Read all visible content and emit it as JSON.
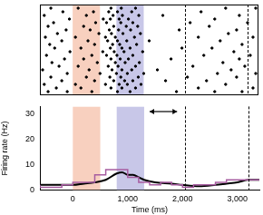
{
  "chart_data": [
    {
      "type": "scatter",
      "xlim": [
        -600,
        3400
      ],
      "ylim": [
        0,
        25
      ],
      "tick_labels": false,
      "grid": false,
      "color": "#000000",
      "marker": "dot",
      "trials": [
        [
          -450,
          -100,
          350,
          820,
          1050,
          1900,
          2600,
          3100
        ],
        [
          -300,
          150,
          700,
          900,
          1150,
          2300,
          3300
        ],
        [
          -520,
          50,
          600,
          850,
          1000,
          1250,
          2800
        ],
        [
          -200,
          400,
          750,
          950,
          1100,
          1700,
          2450
        ],
        [
          -400,
          250,
          680,
          880,
          1200,
          2100,
          3000
        ],
        [
          -100,
          500,
          800,
          1000,
          1300,
          2650,
          3350
        ],
        [
          -550,
          300,
          720,
          900,
          1080,
          1550,
          2900
        ],
        [
          -250,
          100,
          650,
          830,
          1150,
          2200,
          3150
        ],
        [
          -380,
          450,
          780,
          960,
          1220,
          2750
        ],
        [
          -150,
          200,
          700,
          870,
          1020,
          1800,
          3050
        ],
        [
          -480,
          350,
          620,
          810,
          1100,
          2400,
          3250
        ],
        [
          -50,
          550,
          760,
          940,
          1280,
          2950
        ],
        [
          -330,
          150,
          690,
          900,
          1050,
          2000,
          2550
        ],
        [
          -420,
          400,
          730,
          860,
          1170,
          3100
        ],
        [
          -200,
          280,
          640,
          820,
          990,
          1400,
          2700
        ],
        [
          -500,
          50,
          600,
          780,
          1130,
          2300,
          3300
        ],
        [
          -280,
          480,
          710,
          920,
          1240,
          2850
        ],
        [
          -120,
          320,
          670,
          840,
          1060,
          1950,
          3000
        ],
        [
          -450,
          200,
          750,
          980,
          1190,
          2500
        ],
        [
          -350,
          420,
          620,
          880,
          1100,
          2150,
          3200
        ],
        [
          -60,
          560,
          690,
          850,
          1020,
          2600
        ],
        [
          -520,
          250,
          740,
          910,
          1210,
          1650,
          3050
        ],
        [
          -180,
          380,
          660,
          820,
          1080,
          2350
        ],
        [
          -400,
          100,
          700,
          890,
          1150,
          2800,
          3350
        ]
      ],
      "shaded_regions": [
        {
          "start": 0,
          "end": 500,
          "color": "#f8d0bf"
        },
        {
          "start": 800,
          "end": 1300,
          "color": "#c8c7e8"
        }
      ],
      "vlines": [
        2050,
        3200
      ]
    },
    {
      "type": "line",
      "x_label": "Time (ms)",
      "y_label": "Firing rate (Hz)",
      "xlim": [
        -600,
        3400
      ],
      "ylim": [
        0,
        33
      ],
      "xticks": [
        0,
        {
          "value": 1000,
          "label": "1,000"
        },
        {
          "value": 2000,
          "label": "2,000"
        },
        {
          "value": 3000,
          "label": "3,000"
        }
      ],
      "yticks": [
        0,
        10,
        20,
        30
      ],
      "grid": false,
      "series": [
        {
          "type": "histogram",
          "color": "#a65ca0",
          "bins": [
            -600,
            -400,
            -200,
            0,
            200,
            400,
            600,
            800,
            1000,
            1200,
            1400,
            1600,
            1800,
            2000,
            2200,
            2400,
            2600,
            2800,
            3000,
            3200,
            3400
          ],
          "values": [
            2,
            1,
            1,
            2,
            3,
            3,
            6,
            8,
            8,
            5,
            3,
            2,
            3,
            2,
            1,
            2,
            2,
            3,
            4,
            4
          ]
        },
        {
          "type": "line",
          "color": "#000000",
          "x": [
            -600,
            -400,
            -200,
            0,
            200,
            400,
            600,
            800,
            900,
            1000,
            1100,
            1200,
            1300,
            1500,
            1800,
            2000,
            2300,
            2600,
            2800,
            3000,
            3200,
            3400
          ],
          "values": [
            2,
            2,
            2,
            2,
            2.5,
            3,
            4,
            6.5,
            7,
            6,
            6,
            5,
            4,
            3,
            2.5,
            2,
            1.5,
            2,
            2.5,
            3,
            4,
            4
          ]
        }
      ],
      "shaded_regions": [
        {
          "start": 0,
          "end": 500,
          "color": "#f8d0bf"
        },
        {
          "start": 800,
          "end": 1300,
          "color": "#c8c7e8"
        }
      ],
      "vlines": [
        2050,
        3200
      ],
      "arrow": {
        "start": 1400,
        "end": 1900,
        "y": 31
      }
    }
  ]
}
